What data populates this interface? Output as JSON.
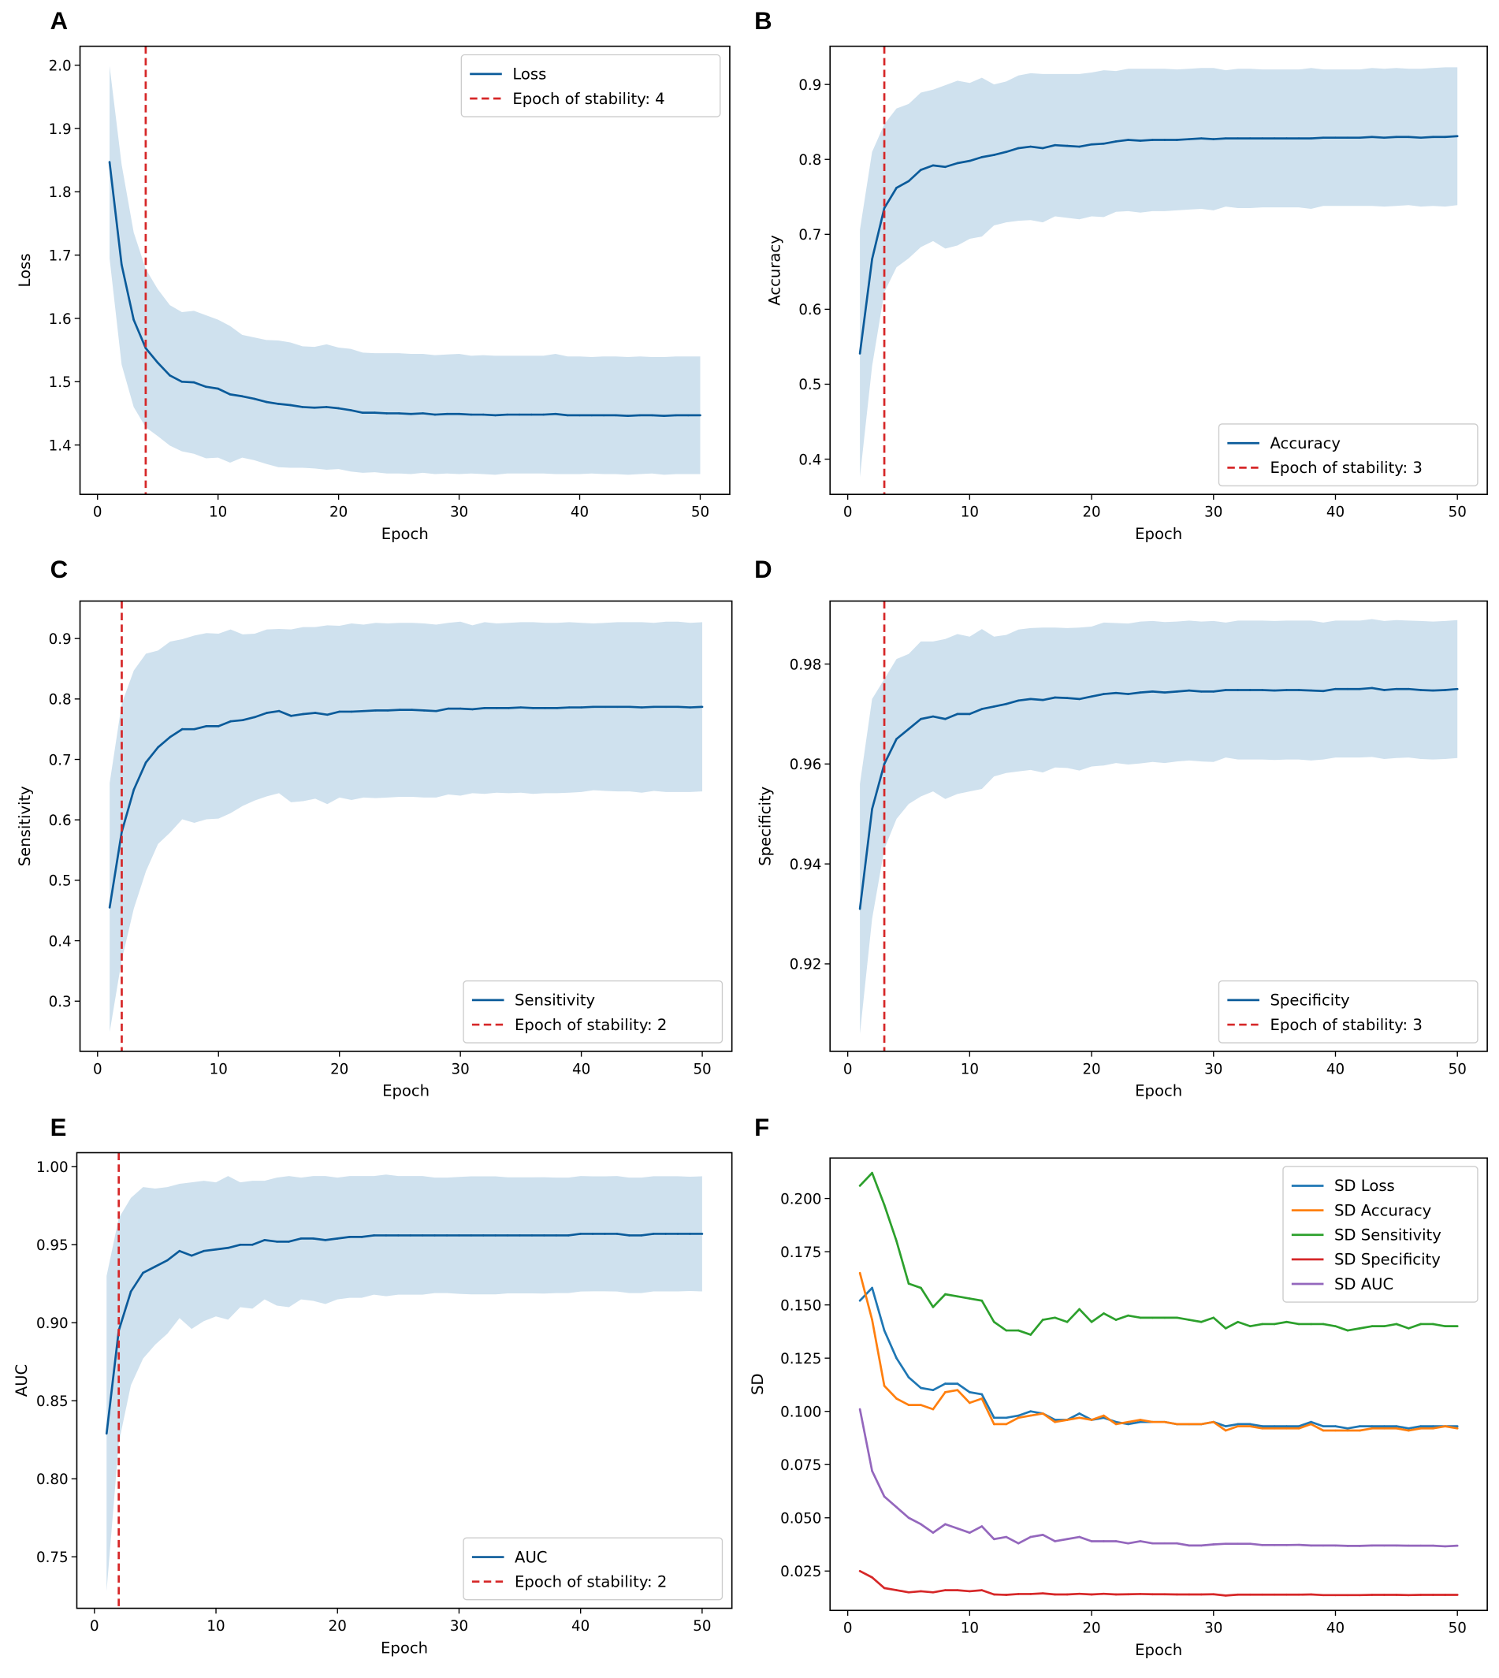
{
  "chart_data": [
    {
      "panel": "A",
      "type": "line",
      "xlabel": "Epoch",
      "ylabel": "Loss",
      "xlim": [
        -1.45,
        52.45
      ],
      "ylim": [
        1.322,
        2.03
      ],
      "xticks": [
        "0",
        "10",
        "20",
        "30",
        "40",
        "50"
      ],
      "yticks": [
        "1.4",
        "1.5",
        "1.6",
        "1.7",
        "1.8",
        "1.9",
        "2.0"
      ],
      "legend": "upper-right",
      "stability_epoch": 4,
      "legend_labels": [
        "Loss",
        "Epoch of stability: 4"
      ],
      "band": "mean ± SD Loss",
      "sd_series": 0,
      "mean": [
        1.847,
        1.685,
        1.598,
        1.553,
        1.53,
        1.51,
        1.5,
        1.499,
        1.492,
        1.489,
        1.48,
        1.477,
        1.473,
        1.468,
        1.465,
        1.463,
        1.46,
        1.459,
        1.46,
        1.458,
        1.455,
        1.451,
        1.451,
        1.45,
        1.45,
        1.449,
        1.45,
        1.448,
        1.449,
        1.449,
        1.448,
        1.448,
        1.447,
        1.448,
        1.448,
        1.448,
        1.448,
        1.449,
        1.447,
        1.447,
        1.447,
        1.447,
        1.447,
        1.446,
        1.447,
        1.447,
        1.446,
        1.447,
        1.447,
        1.447
      ]
    },
    {
      "panel": "B",
      "type": "line",
      "xlabel": "Epoch",
      "ylabel": "Accuracy",
      "xlim": [
        -1.45,
        52.45
      ],
      "ylim": [
        0.353,
        0.951
      ],
      "xticks": [
        "0",
        "10",
        "20",
        "30",
        "40",
        "50"
      ],
      "yticks": [
        "0.4",
        "0.5",
        "0.6",
        "0.7",
        "0.8",
        "0.9"
      ],
      "legend": "lower-right",
      "stability_epoch": 3,
      "legend_labels": [
        "Accuracy",
        "Epoch of stability: 3"
      ],
      "sd_series": 1,
      "mean": [
        0.541,
        0.667,
        0.735,
        0.762,
        0.771,
        0.786,
        0.792,
        0.79,
        0.795,
        0.798,
        0.803,
        0.806,
        0.81,
        0.815,
        0.817,
        0.815,
        0.819,
        0.818,
        0.817,
        0.82,
        0.821,
        0.824,
        0.826,
        0.825,
        0.826,
        0.826,
        0.826,
        0.827,
        0.828,
        0.827,
        0.828,
        0.828,
        0.828,
        0.828,
        0.828,
        0.828,
        0.828,
        0.828,
        0.829,
        0.829,
        0.829,
        0.829,
        0.83,
        0.829,
        0.83,
        0.83,
        0.829,
        0.83,
        0.83,
        0.831
      ]
    },
    {
      "panel": "C",
      "type": "line",
      "xlabel": "Epoch",
      "ylabel": "Sensitivity",
      "xlim": [
        -1.45,
        52.45
      ],
      "ylim": [
        0.217,
        0.962
      ],
      "xticks": [
        "0",
        "10",
        "20",
        "30",
        "40",
        "50"
      ],
      "yticks": [
        "0.3",
        "0.4",
        "0.5",
        "0.6",
        "0.7",
        "0.8",
        "0.9"
      ],
      "legend": "lower-right",
      "stability_epoch": 2,
      "legend_labels": [
        "Sensitivity",
        "Epoch of stability: 2"
      ],
      "sd_series": 2,
      "mean": [
        0.455,
        0.58,
        0.65,
        0.695,
        0.72,
        0.737,
        0.75,
        0.75,
        0.755,
        0.755,
        0.763,
        0.765,
        0.77,
        0.777,
        0.78,
        0.772,
        0.775,
        0.777,
        0.774,
        0.779,
        0.779,
        0.78,
        0.781,
        0.781,
        0.782,
        0.782,
        0.781,
        0.78,
        0.784,
        0.784,
        0.783,
        0.785,
        0.785,
        0.785,
        0.786,
        0.785,
        0.785,
        0.785,
        0.786,
        0.786,
        0.787,
        0.787,
        0.787,
        0.787,
        0.786,
        0.787,
        0.787,
        0.787,
        0.786,
        0.787
      ]
    },
    {
      "panel": "D",
      "type": "line",
      "xlabel": "Epoch",
      "ylabel": "Specificity",
      "xlim": [
        -1.45,
        52.45
      ],
      "ylim": [
        0.9025,
        0.9926
      ],
      "xticks": [
        "0",
        "10",
        "20",
        "30",
        "40",
        "50"
      ],
      "yticks": [
        "0.92",
        "0.94",
        "0.96",
        "0.98"
      ],
      "legend": "lower-right",
      "stability_epoch": 3,
      "legend_labels": [
        "Specificity",
        "Epoch of stability: 3"
      ],
      "sd_series": 3,
      "mean": [
        0.931,
        0.951,
        0.96,
        0.965,
        0.967,
        0.969,
        0.9695,
        0.969,
        0.97,
        0.97,
        0.971,
        0.9715,
        0.972,
        0.9727,
        0.973,
        0.9728,
        0.9733,
        0.9732,
        0.973,
        0.9735,
        0.974,
        0.9742,
        0.974,
        0.9743,
        0.9745,
        0.9743,
        0.9745,
        0.9747,
        0.9745,
        0.9745,
        0.9748,
        0.9748,
        0.9748,
        0.9748,
        0.9747,
        0.9748,
        0.9748,
        0.9747,
        0.9746,
        0.975,
        0.975,
        0.975,
        0.9752,
        0.9748,
        0.975,
        0.975,
        0.9748,
        0.9747,
        0.9748,
        0.975
      ]
    },
    {
      "panel": "E",
      "type": "line",
      "xlabel": "Epoch",
      "ylabel": "AUC",
      "xlim": [
        -1.45,
        52.45
      ],
      "ylim": [
        0.717,
        1.009
      ],
      "xticks": [
        "0",
        "10",
        "20",
        "30",
        "40",
        "50"
      ],
      "yticks": [
        "0.75",
        "0.80",
        "0.85",
        "0.90",
        "0.95",
        "1.00"
      ],
      "legend": "lower-right",
      "stability_epoch": 2,
      "legend_labels": [
        "AUC",
        "Epoch of stability: 2"
      ],
      "sd_series": 4,
      "mean": [
        0.829,
        0.895,
        0.92,
        0.932,
        0.936,
        0.94,
        0.946,
        0.943,
        0.946,
        0.947,
        0.948,
        0.95,
        0.95,
        0.953,
        0.952,
        0.952,
        0.954,
        0.954,
        0.953,
        0.954,
        0.955,
        0.955,
        0.956,
        0.956,
        0.956,
        0.956,
        0.956,
        0.956,
        0.956,
        0.956,
        0.956,
        0.956,
        0.956,
        0.956,
        0.956,
        0.956,
        0.956,
        0.956,
        0.956,
        0.957,
        0.957,
        0.957,
        0.957,
        0.956,
        0.956,
        0.957,
        0.957,
        0.957,
        0.957,
        0.957
      ]
    },
    {
      "panel": "F",
      "type": "line",
      "xlabel": "Epoch",
      "ylabel": "SD",
      "xlim": [
        -1.45,
        52.45
      ],
      "ylim": [
        0.0065,
        0.219
      ],
      "xticks": [
        "0",
        "10",
        "20",
        "30",
        "40",
        "50"
      ],
      "yticks": [
        "0.025",
        "0.050",
        "0.075",
        "0.100",
        "0.125",
        "0.150",
        "0.175",
        "0.200"
      ],
      "legend": "upper-right",
      "series": [
        {
          "name": "SD Loss",
          "color": "#1f77b4",
          "values": [
            0.152,
            0.158,
            0.138,
            0.125,
            0.116,
            0.111,
            0.11,
            0.113,
            0.113,
            0.109,
            0.108,
            0.097,
            0.097,
            0.098,
            0.1,
            0.099,
            0.096,
            0.096,
            0.099,
            0.096,
            0.097,
            0.095,
            0.094,
            0.095,
            0.095,
            0.095,
            0.094,
            0.094,
            0.094,
            0.095,
            0.093,
            0.094,
            0.094,
            0.093,
            0.093,
            0.093,
            0.093,
            0.095,
            0.093,
            0.093,
            0.092,
            0.093,
            0.093,
            0.093,
            0.093,
            0.092,
            0.093,
            0.093,
            0.093,
            0.093
          ]
        },
        {
          "name": "SD Accuracy",
          "color": "#ff7f0e",
          "values": [
            0.165,
            0.143,
            0.112,
            0.106,
            0.103,
            0.103,
            0.101,
            0.109,
            0.11,
            0.104,
            0.106,
            0.094,
            0.094,
            0.097,
            0.098,
            0.099,
            0.095,
            0.096,
            0.097,
            0.096,
            0.098,
            0.094,
            0.095,
            0.096,
            0.095,
            0.095,
            0.094,
            0.094,
            0.094,
            0.095,
            0.091,
            0.093,
            0.093,
            0.092,
            0.092,
            0.092,
            0.092,
            0.094,
            0.091,
            0.091,
            0.091,
            0.091,
            0.092,
            0.092,
            0.092,
            0.091,
            0.092,
            0.092,
            0.093,
            0.092
          ]
        },
        {
          "name": "SD Sensitivity",
          "color": "#2ca02c",
          "values": [
            0.206,
            0.212,
            0.197,
            0.18,
            0.16,
            0.158,
            0.149,
            0.155,
            0.154,
            0.153,
            0.152,
            0.142,
            0.138,
            0.138,
            0.136,
            0.143,
            0.144,
            0.142,
            0.148,
            0.142,
            0.146,
            0.143,
            0.145,
            0.144,
            0.144,
            0.144,
            0.144,
            0.143,
            0.142,
            0.144,
            0.139,
            0.142,
            0.14,
            0.141,
            0.141,
            0.142,
            0.141,
            0.141,
            0.141,
            0.14,
            0.138,
            0.139,
            0.14,
            0.14,
            0.141,
            0.139,
            0.141,
            0.141,
            0.14,
            0.14
          ]
        },
        {
          "name": "SD Specificity",
          "color": "#d62728",
          "values": [
            0.025,
            0.022,
            0.017,
            0.016,
            0.015,
            0.0155,
            0.015,
            0.016,
            0.016,
            0.0155,
            0.016,
            0.014,
            0.0138,
            0.0142,
            0.0142,
            0.0145,
            0.014,
            0.014,
            0.0143,
            0.014,
            0.0143,
            0.014,
            0.0141,
            0.0142,
            0.0141,
            0.0141,
            0.014,
            0.014,
            0.014,
            0.0141,
            0.0135,
            0.0139,
            0.0139,
            0.0139,
            0.0139,
            0.0139,
            0.0139,
            0.014,
            0.0137,
            0.0137,
            0.0137,
            0.0137,
            0.0138,
            0.0138,
            0.0138,
            0.0137,
            0.0138,
            0.0138,
            0.0138,
            0.0138
          ]
        },
        {
          "name": "SD AUC",
          "color": "#9467bd",
          "values": [
            0.101,
            0.072,
            0.06,
            0.055,
            0.05,
            0.047,
            0.043,
            0.047,
            0.045,
            0.043,
            0.046,
            0.04,
            0.041,
            0.038,
            0.041,
            0.042,
            0.039,
            0.04,
            0.041,
            0.039,
            0.039,
            0.039,
            0.038,
            0.039,
            0.038,
            0.038,
            0.038,
            0.037,
            0.037,
            0.0375,
            0.0378,
            0.0378,
            0.0378,
            0.0372,
            0.0372,
            0.0372,
            0.0373,
            0.037,
            0.037,
            0.037,
            0.0368,
            0.0368,
            0.037,
            0.037,
            0.037,
            0.0369,
            0.0369,
            0.0369,
            0.0366,
            0.0369
          ]
        }
      ]
    }
  ],
  "colors": {
    "mean_line": "#0b5b9a",
    "band": "#cfe1ee",
    "stability_line": "#d62728"
  }
}
